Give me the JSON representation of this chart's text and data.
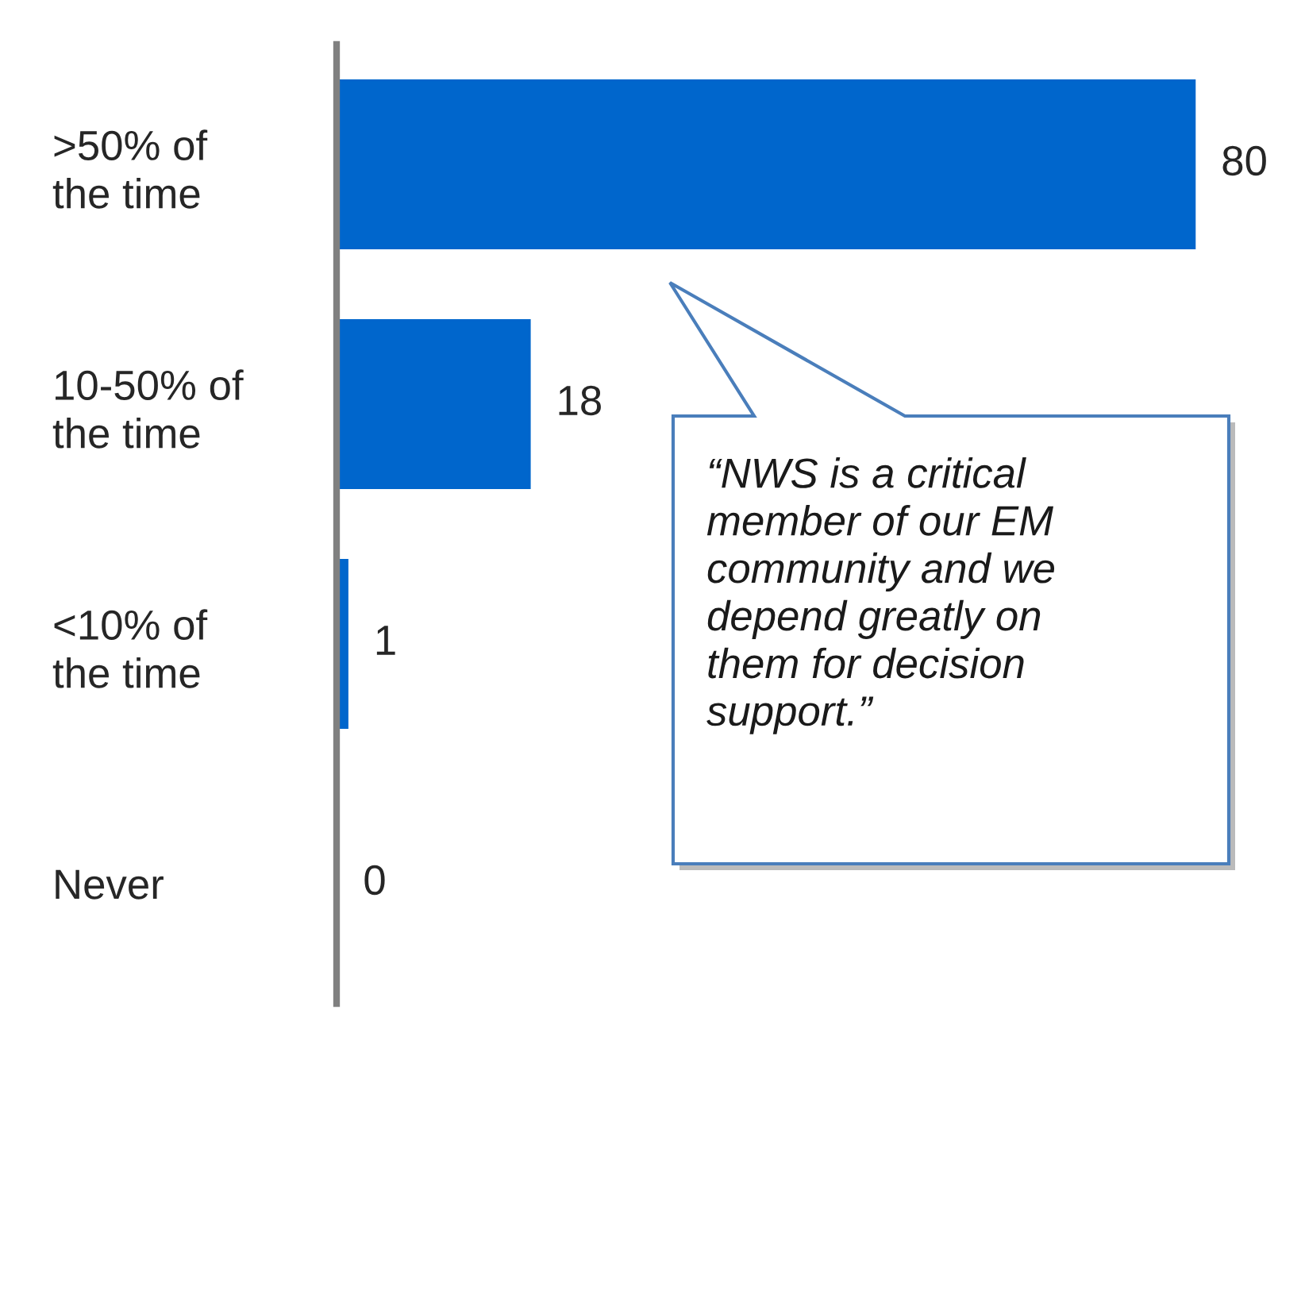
{
  "chart_data": {
    "type": "bar",
    "orientation": "horizontal",
    "categories": [
      ">50% of\nthe time",
      "10-50% of\nthe time",
      "<10% of\nthe time",
      "Never"
    ],
    "values": [
      80,
      18,
      1,
      0
    ],
    "color": "#0066cc",
    "data_labels": true,
    "grid": false,
    "legend": false,
    "annotations": [
      "“NWS is a critical\nmember of our EM\ncommunity and we\ndepend greatly on\nthem for decision\nsupport.”"
    ]
  }
}
